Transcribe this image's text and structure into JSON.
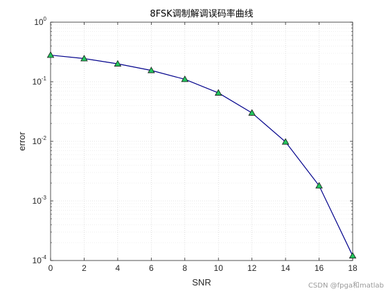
{
  "chart_data": {
    "type": "line",
    "title": "8FSK调制解调误码率曲线",
    "xlabel": "SNR",
    "ylabel": "error",
    "yscale": "log",
    "xlim": [
      0,
      18
    ],
    "ylim_exponent": [
      -4,
      0
    ],
    "x_ticks": [
      "0",
      "2",
      "4",
      "6",
      "8",
      "10",
      "12",
      "14",
      "16",
      "18"
    ],
    "y_tick_base": "10",
    "y_tick_exponents": [
      "-4",
      "-3",
      "-2",
      "-1",
      "0"
    ],
    "grid": true,
    "legend": "none",
    "series": [
      {
        "x": [
          0,
          2,
          4,
          6,
          8,
          10,
          12,
          14,
          16,
          18
        ],
        "y": [
          0.28,
          0.245,
          0.2,
          0.155,
          0.11,
          0.065,
          0.03,
          0.0098,
          0.0018,
          0.00012
        ],
        "line_color": "#00008b",
        "marker": "triangle",
        "marker_fill": "#22c55e",
        "marker_edge": "#1a1a1a"
      }
    ]
  },
  "watermark": "CSDN @fpga和matlab"
}
